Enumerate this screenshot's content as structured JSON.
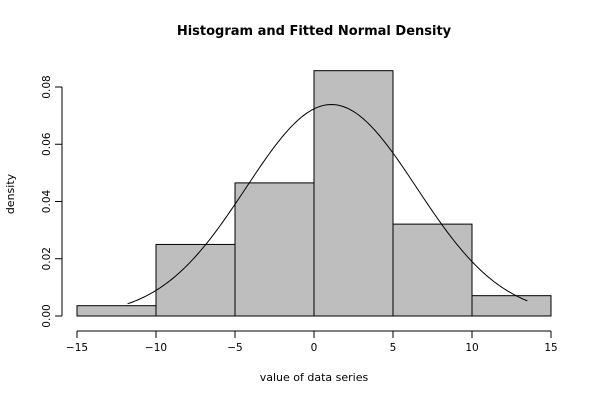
{
  "chart_data": {
    "type": "bar",
    "title": "Histogram and Fitted Normal Density",
    "xlabel": "value of data series",
    "ylabel": "density",
    "xlim": [
      -15,
      15
    ],
    "ylim": [
      0,
      0.08
    ],
    "x_ticks": [
      -15,
      -10,
      -5,
      0,
      5,
      10,
      15
    ],
    "x_tick_labels": [
      "−15",
      "−10",
      "−5",
      "0",
      "5",
      "10",
      "15"
    ],
    "y_ticks": [
      0,
      0.02,
      0.04,
      0.06,
      0.08
    ],
    "y_tick_labels": [
      "0.00",
      "0.02",
      "0.04",
      "0.06",
      "0.08"
    ],
    "bins": [
      {
        "left": -15,
        "right": -10,
        "density": 0.0036
      },
      {
        "left": -10,
        "right": -5,
        "density": 0.025
      },
      {
        "left": -5,
        "right": 0,
        "density": 0.0465
      },
      {
        "left": 0,
        "right": 5,
        "density": 0.0857
      },
      {
        "left": 5,
        "right": 10,
        "density": 0.0321
      },
      {
        "left": 10,
        "right": 15,
        "density": 0.0071
      }
    ],
    "fitted_normal": {
      "mean": 1.1,
      "sd": 5.4,
      "x_from": -11.8,
      "x_to": 13.5
    },
    "grid": false,
    "legend": "none",
    "colors": {
      "bar_fill": "#bebebe",
      "bar_stroke": "#000000",
      "curve": "#000000"
    }
  }
}
